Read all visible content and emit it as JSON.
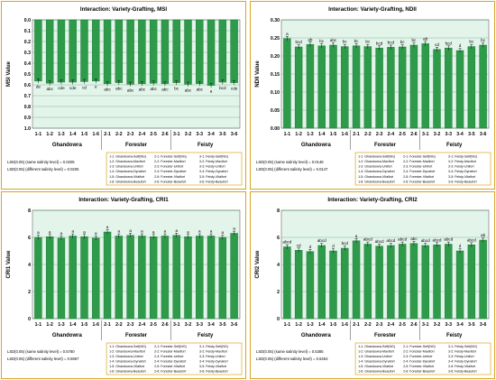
{
  "colors": {
    "bar": "#2e9b4a",
    "bar_dark": "#1f7a36",
    "plot_bg": "#e3f4ea",
    "panel_border": "#d9a520",
    "grid": "#2e8b57"
  },
  "legend_items": [
    [
      "1-1: Ghandowra-Self(NG)",
      "2-1: Forester-Self(NG)",
      "3-1: Feisty-Self(NG)"
    ],
    [
      "1-2: Ghandowra-Maxifort",
      "2-2: Forester-Maxifort",
      "3-2: Feisty-Maxifort"
    ],
    [
      "1-3: Ghandowra-Unifort",
      "2-3: Forester-Unifort",
      "3-3: Feisty-Unifort"
    ],
    [
      "1-4: Ghandowra-Dynafort",
      "2-4: Forester-Dynafort",
      "3-4: Feisty-Dynafort"
    ],
    [
      "1-5: Ghandowra-Vitalfort",
      "2-5: Forester-Vitalfort",
      "3-5: Feisty-Vitalfort"
    ],
    [
      "1-6: Ghandowra-Beaufort",
      "2-6: Forester-Beaufort",
      "3-6: Feisty-Beaufort"
    ]
  ],
  "chart_data": [
    {
      "type": "bar",
      "title": "Interaction: Variety-Grafting, MSI",
      "ylabel": "MSI Value",
      "ylim": [
        0,
        1.0
      ],
      "yticks": [
        "0.0",
        "0.1",
        "0.2",
        "0.3",
        "0.4",
        "0.5",
        "0.6",
        "0.7",
        "0.8",
        "0.9",
        "1.0"
      ],
      "invert_y": true,
      "categories": [
        "1-1",
        "1-2",
        "1-3",
        "1-4",
        "1-5",
        "1-6",
        "2-1",
        "2-2",
        "2-3",
        "2-4",
        "2-5",
        "2-6",
        "3-1",
        "3-2",
        "3-3",
        "3-4",
        "3-5",
        "3-6"
      ],
      "values": [
        0.565,
        0.585,
        0.575,
        0.575,
        0.57,
        0.565,
        0.59,
        0.58,
        0.595,
        0.59,
        0.585,
        0.59,
        0.58,
        0.595,
        0.59,
        0.605,
        0.575,
        0.58
      ],
      "letters": [
        "de",
        "abc",
        "cde",
        "cde",
        "cd",
        "e",
        "abc",
        "abc",
        "abc",
        "abc",
        "abc",
        "abc",
        "bc",
        "abc",
        "abc",
        "a",
        "bcd",
        "cde"
      ],
      "groups": [
        "Ghandowra",
        "Forester",
        "Feisty"
      ],
      "lsd_same": "LSD(0.05) (same salinity level) = 0.0205",
      "lsd_diff": "LSD(0.05) (different salinity level) = 0.0205"
    },
    {
      "type": "bar",
      "title": "Interaction: Variety-Grafting, NDII",
      "ylabel": "NDII Value",
      "ylim": [
        0,
        0.3
      ],
      "yticks": [
        "0.00",
        "0.05",
        "0.10",
        "0.15",
        "0.20",
        "0.25",
        "0.30"
      ],
      "invert_y": false,
      "categories": [
        "1-1",
        "1-2",
        "1-3",
        "1-4",
        "1-5",
        "1-6",
        "2-1",
        "2-2",
        "2-3",
        "2-4",
        "2-5",
        "2-6",
        "3-1",
        "3-2",
        "3-3",
        "3-4",
        "3-5",
        "3-6"
      ],
      "values": [
        0.248,
        0.225,
        0.232,
        0.228,
        0.23,
        0.226,
        0.228,
        0.226,
        0.222,
        0.224,
        0.225,
        0.23,
        0.234,
        0.218,
        0.222,
        0.215,
        0.226,
        0.23
      ],
      "letters": [
        "a",
        "bcd",
        "ab",
        "bc",
        "abc",
        "bc",
        "bc",
        "bc",
        "bcd",
        "bcd",
        "bc",
        "bc",
        "ab",
        "cd",
        "bcd",
        "d",
        "bc",
        "bc"
      ],
      "groups": [
        "Ghandowra",
        "Forester",
        "Feisty"
      ],
      "lsd_same": "LSD(0.05) (same salinity level) = 0.0148",
      "lsd_diff": "LSD(0.05) (different salinity level) = 0.0147"
    },
    {
      "type": "bar",
      "title": "Interaction: Variety-Grafting, CRI1",
      "ylabel": "CRI1 Value",
      "ylim": [
        0,
        8
      ],
      "yticks": [
        "0",
        "2",
        "4",
        "6",
        "8"
      ],
      "invert_y": false,
      "categories": [
        "1-1",
        "1-2",
        "1-3",
        "1-4",
        "1-5",
        "1-6",
        "2-1",
        "2-2",
        "2-3",
        "2-4",
        "2-5",
        "2-6",
        "3-1",
        "3-2",
        "3-3",
        "3-4",
        "3-5",
        "3-6"
      ],
      "values": [
        6.0,
        6.05,
        5.95,
        6.1,
        6.05,
        5.95,
        6.4,
        6.1,
        6.15,
        6.1,
        6.05,
        6.1,
        6.15,
        6.05,
        6.1,
        6.1,
        6.0,
        6.3
      ],
      "letters": [
        "a",
        "a",
        "a",
        "a",
        "a",
        "a",
        "a",
        "a",
        "a",
        "a",
        "a",
        "a",
        "a",
        "a",
        "a",
        "a",
        "a",
        "a"
      ],
      "groups": [
        "Ghandowra",
        "Forester",
        "Feisty"
      ],
      "lsd_same": "LSD(0.05) (same salinity level) = 0.5780",
      "lsd_diff": "LSD(0.05) (different salinity level) = 0.5967"
    },
    {
      "type": "bar",
      "title": "Interaction: Variety-Grafting, CRI2",
      "ylabel": "CRI2 Value",
      "ylim": [
        0,
        8
      ],
      "yticks": [
        "0",
        "2",
        "4",
        "6",
        "8"
      ],
      "invert_y": false,
      "categories": [
        "1-1",
        "1-2",
        "1-3",
        "1-4",
        "1-5",
        "1-6",
        "2-1",
        "2-2",
        "2-3",
        "2-4",
        "2-5",
        "2-6",
        "3-1",
        "3-2",
        "3-3",
        "3-4",
        "3-5",
        "3-6"
      ],
      "values": [
        5.3,
        5.05,
        4.95,
        5.4,
        5.0,
        5.2,
        5.75,
        5.5,
        5.35,
        5.4,
        5.5,
        5.55,
        5.4,
        5.45,
        5.5,
        5.0,
        5.45,
        5.8
      ],
      "letters": [
        "abcd",
        "cd",
        "d",
        "abcd",
        "d",
        "bcd",
        "a",
        "abcd",
        "abcd",
        "abcd",
        "abcd",
        "abc",
        "abcd",
        "abcd",
        "abcd",
        "d",
        "abcd",
        "ab"
      ],
      "groups": [
        "Ghandowra",
        "Forester",
        "Feisty"
      ],
      "lsd_same": "LSD(0.05) (same salinity level) = 0.5385",
      "lsd_diff": "LSD(0.05) (different salinity level) = 0.5453"
    }
  ]
}
